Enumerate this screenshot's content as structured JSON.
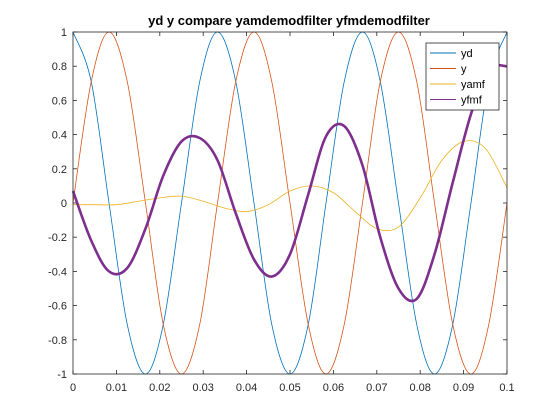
{
  "chart_data": {
    "type": "line",
    "title": "yd y compare yamdemodfilter yfmdemodfilter",
    "xlabel": "",
    "ylabel": "",
    "xlim": [
      0,
      0.1
    ],
    "ylim": [
      -1,
      1
    ],
    "xticks": [
      0,
      0.01,
      0.02,
      0.03,
      0.04,
      0.05,
      0.06,
      0.07,
      0.08,
      0.09,
      0.1
    ],
    "xtick_labels": [
      "0",
      "0.01",
      "0.02",
      "0.03",
      "0.04",
      "0.05",
      "0.06",
      "0.07",
      "0.08",
      "0.09",
      "0.1"
    ],
    "yticks": [
      -1,
      -0.8,
      -0.6,
      -0.4,
      -0.2,
      0,
      0.2,
      0.4,
      0.6,
      0.8,
      1
    ],
    "ytick_labels": [
      "-1",
      "-0.8",
      "-0.6",
      "-0.4",
      "-0.2",
      "0",
      "0.2",
      "0.4",
      "0.6",
      "0.8",
      "1"
    ],
    "grid": false,
    "legend_position": "top-right",
    "series": [
      {
        "name": "yd",
        "color": "#0072BD",
        "x": [
          0,
          0.0042,
          0.0083,
          0.0125,
          0.0167,
          0.0208,
          0.025,
          0.0292,
          0.0333,
          0.0375,
          0.0417,
          0.0458,
          0.05,
          0.0542,
          0.0583,
          0.0625,
          0.0667,
          0.0708,
          0.075,
          0.0792,
          0.0833,
          0.0875,
          0.0917,
          0.0958,
          0.1
        ],
        "y": [
          1,
          0.71,
          0,
          -0.71,
          -1,
          -0.71,
          0,
          0.71,
          1,
          0.71,
          0,
          -0.71,
          -1,
          -0.71,
          0,
          0.71,
          1,
          0.71,
          0,
          -0.71,
          -1,
          -0.71,
          0,
          0.71,
          1
        ]
      },
      {
        "name": "y",
        "color": "#D95319",
        "x": [
          0,
          0.0042,
          0.0083,
          0.0125,
          0.0167,
          0.0208,
          0.025,
          0.0292,
          0.0333,
          0.0375,
          0.0417,
          0.0458,
          0.05,
          0.0542,
          0.0583,
          0.0625,
          0.0667,
          0.0708,
          0.075,
          0.0792,
          0.0833,
          0.0875,
          0.0917,
          0.0958,
          0.1
        ],
        "y": [
          0,
          0.71,
          1,
          0.71,
          0,
          -0.71,
          -1,
          -0.71,
          0,
          0.71,
          1,
          0.71,
          0,
          -0.71,
          -1,
          -0.71,
          0,
          0.71,
          1,
          0.71,
          0,
          -0.71,
          -1,
          -0.71,
          0
        ]
      },
      {
        "name": "yamf",
        "color": "#EDB120",
        "x": [
          0,
          0.005,
          0.01,
          0.015,
          0.02,
          0.025,
          0.03,
          0.035,
          0.04,
          0.045,
          0.05,
          0.055,
          0.06,
          0.065,
          0.07,
          0.075,
          0.08,
          0.085,
          0.09,
          0.095,
          0.1
        ],
        "y": [
          -0.01,
          -0.01,
          -0.01,
          0.01,
          0.03,
          0.04,
          0.01,
          -0.03,
          -0.05,
          -0.01,
          0.07,
          0.1,
          0.06,
          -0.05,
          -0.15,
          -0.14,
          0.03,
          0.25,
          0.36,
          0.32,
          0.09
        ]
      },
      {
        "name": "yfmf",
        "color": "#7E2F8E",
        "x": [
          0,
          0.0042,
          0.0083,
          0.0125,
          0.0167,
          0.0208,
          0.025,
          0.0292,
          0.0333,
          0.0375,
          0.0417,
          0.0458,
          0.05,
          0.0542,
          0.0583,
          0.0625,
          0.0667,
          0.0708,
          0.075,
          0.0792,
          0.0833,
          0.0875,
          0.0917,
          0.0958,
          0.1
        ],
        "y": [
          0.07,
          -0.22,
          -0.4,
          -0.38,
          -0.15,
          0.16,
          0.36,
          0.38,
          0.25,
          -0.06,
          -0.33,
          -0.43,
          -0.3,
          0.05,
          0.39,
          0.45,
          0.22,
          -0.2,
          -0.5,
          -0.56,
          -0.3,
          0.12,
          0.52,
          0.78,
          0.8
        ]
      }
    ]
  }
}
